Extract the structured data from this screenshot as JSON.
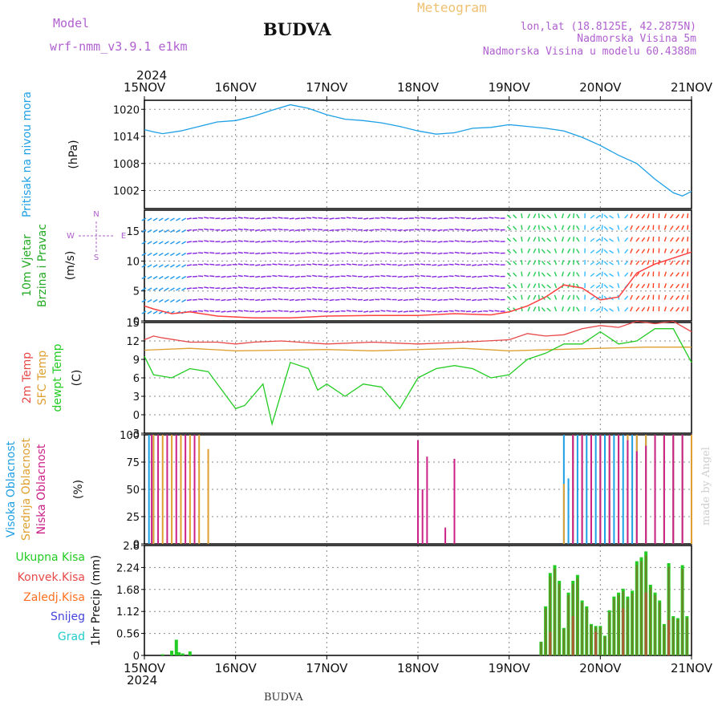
{
  "header": {
    "model_label": "Model",
    "model_name": "wrf-nmm_v3.9.1 e1km",
    "station_title": "BUDVA",
    "meteogram_label": "Meteogram",
    "lonlat": "lon,lat (18.8125E, 42.2875N)",
    "altitude": "Nadmorska Visina 5m",
    "model_altitude": "Nadmorska Visina u modelu 60.4388m",
    "year_top": "2024",
    "year_bottom": "2024",
    "footer_title": "BUDVA",
    "credit": "made by Angel"
  },
  "colors": {
    "pressure": "#1ea0e6",
    "temp2m": "#e84848",
    "sfc": "#e0a030",
    "dewpt": "#22cc22",
    "high_cloud": "#1ea0e6",
    "mid_cloud": "#e0a030",
    "low_cloud": "#cc2288",
    "total_precip": "#22cc22",
    "conv_precip": "#e84848",
    "frozen": "#ff7020",
    "snow": "#4444dd",
    "hail": "#22cccc",
    "violet_text": "#b060d0",
    "meteogram_text": "#f0c070"
  },
  "chart_data": [
    {
      "type": "line",
      "id": "pressure",
      "ylabel_lines": [
        "Pritisak na nivou mora"
      ],
      "unit": "(hPa)",
      "x_ticks": [
        "15NOV",
        "16NOV",
        "17NOV",
        "18NOV",
        "19NOV",
        "20NOV",
        "21NOV"
      ],
      "y_ticks": [
        "1020",
        "1014",
        "1008",
        "1002"
      ],
      "ylim": [
        998,
        1022
      ],
      "x_range_days": [
        0,
        6
      ],
      "series": [
        {
          "x": [
            0,
            0.1,
            0.2,
            0.4,
            0.6,
            0.8,
            1.0,
            1.2,
            1.4,
            1.6,
            1.8,
            2.0,
            2.2,
            2.4,
            2.6,
            2.8,
            3.0,
            3.2,
            3.4,
            3.6,
            3.8,
            4.0,
            4.2,
            4.4,
            4.6,
            4.8,
            5.0,
            5.2,
            5.4,
            5.6,
            5.8,
            5.9,
            6.0
          ],
          "y": [
            1015.5,
            1015.0,
            1014.6,
            1015.2,
            1016.2,
            1017.2,
            1017.5,
            1018.5,
            1019.8,
            1021.0,
            1020.2,
            1018.8,
            1017.8,
            1017.5,
            1017.0,
            1016.2,
            1015.2,
            1014.5,
            1014.8,
            1015.8,
            1016.0,
            1016.6,
            1016.2,
            1015.8,
            1015.2,
            1013.8,
            1012.0,
            1009.8,
            1008.0,
            1004.5,
            1001.5,
            1000.8,
            1001.8
          ]
        }
      ]
    },
    {
      "type": "line",
      "id": "wind",
      "ylabel_lines": [
        "10m Vjetar",
        "Brzina i Pravac"
      ],
      "unit": "(m/s)",
      "compass": {
        "n": "N",
        "s": "S",
        "w": "W",
        "e": "E"
      },
      "y_ticks": [
        "15",
        "10",
        "5",
        "0"
      ],
      "ylim": [
        0,
        18.5
      ],
      "series": [
        {
          "x": [
            0,
            0.1,
            0.3,
            0.5,
            0.8,
            1.2,
            1.6,
            2.0,
            2.5,
            3.0,
            3.4,
            3.8,
            4.0,
            4.2,
            4.4,
            4.6,
            4.8,
            5.0,
            5.2,
            5.4,
            5.6,
            5.8,
            6.0
          ],
          "y": [
            2.5,
            2.0,
            1.2,
            1.5,
            0.8,
            0.5,
            0.5,
            0.8,
            0.9,
            0.9,
            1.2,
            1.0,
            1.5,
            2.5,
            4.0,
            6.0,
            5.5,
            3.5,
            4.0,
            8.0,
            9.5,
            10.5,
            11.5
          ]
        }
      ]
    },
    {
      "type": "line",
      "id": "temperature",
      "ylabel_lines": [
        "2m Temp",
        "SFC Temp",
        "dewpt Temp"
      ],
      "unit": "(C)",
      "y_ticks": [
        "15",
        "12",
        "9",
        "6",
        "3",
        "0",
        "-3"
      ],
      "ylim": [
        -3,
        15
      ],
      "series": [
        {
          "name": "2m Temp",
          "x": [
            0,
            0.1,
            0.2,
            0.5,
            0.8,
            1.0,
            1.2,
            1.5,
            2.0,
            2.5,
            3.0,
            3.5,
            4.0,
            4.2,
            4.4,
            4.6,
            4.8,
            5.0,
            5.2,
            5.4,
            5.6,
            5.8,
            6.0
          ],
          "y": [
            12.2,
            12.8,
            12.5,
            11.8,
            11.8,
            11.5,
            11.8,
            12.0,
            11.5,
            11.8,
            11.5,
            11.8,
            12.2,
            13.2,
            12.8,
            13.0,
            14.0,
            14.5,
            14.2,
            15.2,
            14.8,
            15.2,
            13.5
          ]
        },
        {
          "name": "SFC Temp",
          "x": [
            0,
            0.5,
            1.0,
            1.5,
            2.0,
            2.5,
            3.0,
            3.5,
            4.0,
            4.5,
            5.0,
            5.5,
            6.0
          ],
          "y": [
            10.5,
            10.8,
            10.4,
            10.5,
            10.6,
            10.4,
            10.6,
            10.8,
            10.4,
            10.6,
            10.8,
            11.0,
            11.0
          ]
        },
        {
          "name": "dewpt Temp",
          "x": [
            0,
            0.1,
            0.3,
            0.5,
            0.7,
            0.9,
            1.0,
            1.1,
            1.3,
            1.4,
            1.6,
            1.8,
            1.9,
            2.0,
            2.2,
            2.4,
            2.6,
            2.8,
            3.0,
            3.2,
            3.4,
            3.6,
            3.8,
            4.0,
            4.2,
            4.4,
            4.6,
            4.8,
            5.0,
            5.2,
            5.4,
            5.6,
            5.8,
            6.0
          ],
          "y": [
            9.5,
            6.5,
            6.0,
            7.5,
            7.0,
            3.0,
            1.0,
            1.5,
            5.0,
            -1.5,
            8.5,
            7.5,
            4.0,
            5.0,
            3.0,
            5.0,
            4.5,
            1.0,
            6.0,
            7.5,
            8.0,
            7.5,
            6.0,
            6.5,
            9.0,
            10.0,
            11.5,
            11.5,
            13.5,
            11.5,
            12.0,
            14.0,
            14.0,
            8.5
          ]
        }
      ]
    },
    {
      "type": "bar",
      "id": "clouds",
      "ylabel_lines": [
        "Visoka Oblacnost",
        "Srednja Oblacnost",
        "Niska Oblacnost"
      ],
      "unit": "(%)",
      "y_ticks": [
        "100",
        "75",
        "50",
        "25",
        "0"
      ],
      "ylim": [
        0,
        100
      ],
      "series": [
        {
          "name": "Visoka Oblacnost",
          "x": [
            0.05,
            0.1,
            4.6,
            4.65,
            4.7,
            4.75,
            4.8,
            4.85,
            4.9,
            4.95,
            5.0,
            5.05,
            5.1,
            5.15,
            5.2,
            5.25,
            5.3,
            5.35,
            5.4,
            5.5,
            5.6,
            5.7,
            5.8,
            5.9
          ],
          "values": [
            100,
            100,
            100,
            60,
            100,
            100,
            100,
            100,
            100,
            100,
            100,
            100,
            40,
            100,
            100,
            100,
            100,
            100,
            100,
            100,
            100,
            100,
            100,
            100
          ]
        },
        {
          "name": "Srednja Oblacnost",
          "x": [
            0.1,
            0.2,
            0.3,
            0.4,
            0.5,
            0.6,
            0.7,
            4.6,
            4.7,
            4.8,
            4.9,
            5.0,
            5.1,
            5.2,
            5.3,
            5.4,
            5.5,
            5.6,
            5.7,
            5.8,
            5.9,
            6.0
          ],
          "values": [
            100,
            100,
            100,
            100,
            100,
            100,
            87,
            55,
            100,
            100,
            100,
            100,
            100,
            100,
            100,
            100,
            100,
            100,
            100,
            100,
            100,
            100
          ]
        },
        {
          "name": "Niska Oblacnost",
          "x": [
            0.08,
            0.15,
            0.25,
            0.35,
            0.45,
            0.55,
            3.0,
            3.05,
            3.1,
            3.3,
            3.4,
            4.7,
            4.8,
            4.9,
            5.0,
            5.1,
            5.2,
            5.3,
            5.4,
            5.5,
            5.6,
            5.7,
            5.8,
            5.9
          ],
          "values": [
            100,
            100,
            100,
            100,
            100,
            100,
            95,
            50,
            80,
            15,
            78,
            100,
            100,
            100,
            100,
            100,
            100,
            95,
            85,
            90,
            100,
            100,
            100,
            100
          ]
        }
      ]
    },
    {
      "type": "bar",
      "id": "precip",
      "ylabel_lines": [
        "1hr Precip (mm)"
      ],
      "legend": [
        "Ukupna Kisa",
        "Konvek.Kisa",
        "Zaledj.Kisa",
        "Snijeg",
        "Grad"
      ],
      "y_ticks": [
        "2.8",
        "2.24",
        "1.68",
        "1.12",
        "0.56",
        "0"
      ],
      "ylim": [
        0,
        2.8
      ],
      "x_ticks": [
        "15NOV",
        "16NOV",
        "17NOV",
        "18NOV",
        "19NOV",
        "20NOV",
        "21NOV"
      ],
      "series": [
        {
          "name": "Ukupna Kisa",
          "x": [
            0.2,
            0.3,
            0.35,
            0.38,
            0.42,
            0.5,
            4.35,
            4.4,
            4.45,
            4.5,
            4.55,
            4.6,
            4.65,
            4.7,
            4.75,
            4.8,
            4.85,
            4.9,
            4.95,
            5.0,
            5.05,
            5.1,
            5.15,
            5.2,
            5.25,
            5.3,
            5.35,
            5.4,
            5.45,
            5.5,
            5.55,
            5.6,
            5.65,
            5.7,
            5.75,
            5.8,
            5.85,
            5.9,
            5.95
          ],
          "values": [
            0.03,
            0.12,
            0.4,
            0.08,
            0.05,
            0.1,
            0.35,
            1.25,
            2.1,
            2.3,
            1.9,
            0.7,
            1.6,
            1.9,
            2.05,
            1.4,
            1.25,
            0.8,
            0.75,
            0.75,
            0.5,
            1.15,
            1.5,
            1.6,
            1.7,
            1.5,
            1.65,
            2.4,
            2.5,
            2.65,
            1.8,
            1.6,
            1.4,
            0.8,
            2.35,
            1.0,
            0.95,
            2.3,
            1.0
          ]
        },
        {
          "name": "Konvek.Kisa",
          "x": [
            4.45,
            4.7,
            4.95,
            5.25,
            5.5,
            5.75
          ],
          "values": [
            0.6,
            1.0,
            0.6,
            1.2,
            1.6,
            0.9
          ]
        }
      ]
    }
  ]
}
